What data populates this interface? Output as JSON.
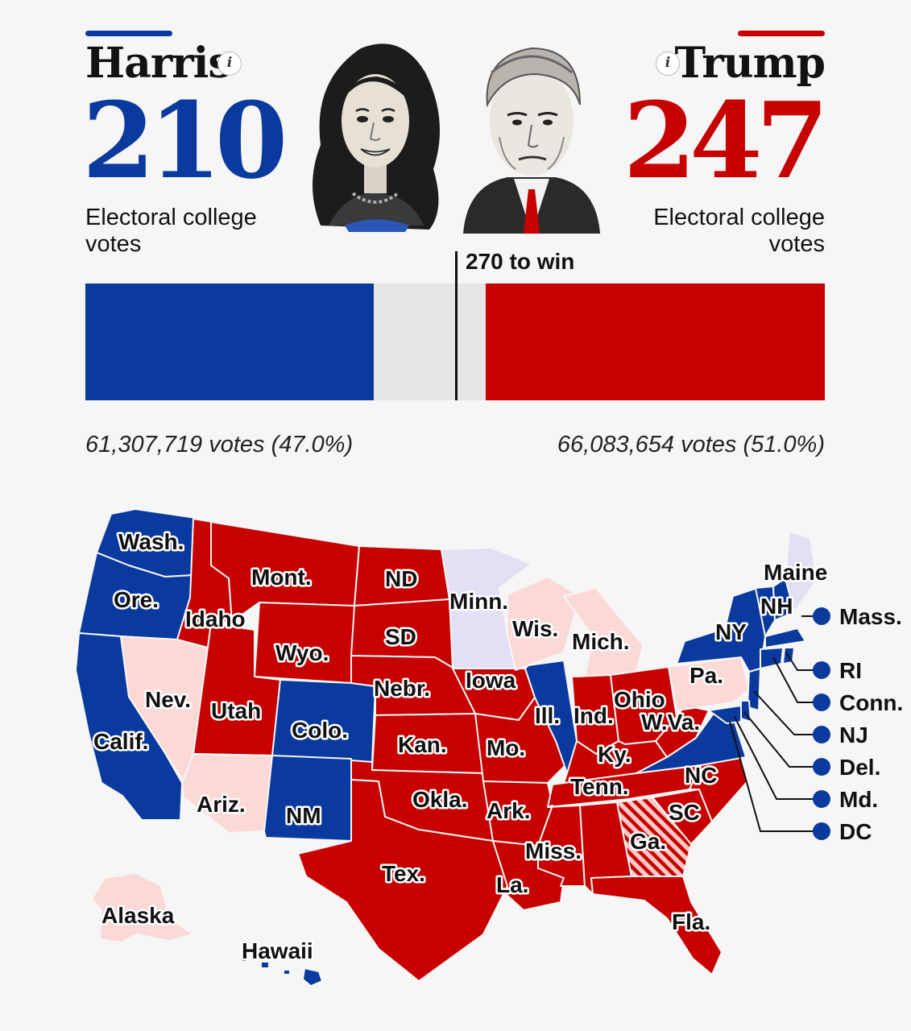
{
  "colors": {
    "dem": "#0a3a9e",
    "rep": "#c70000",
    "dem_lean": "#e2e0f4",
    "rep_lean": "#fbd9d6",
    "track": "#e6e6e6"
  },
  "harris": {
    "name": "Harris",
    "electoral_votes": "210",
    "ev_label": "Electoral college votes",
    "popular_vote": "61,307,719 votes (47.0%)",
    "info_icon": "i"
  },
  "trump": {
    "name": "Trump",
    "electoral_votes": "247",
    "ev_label": "Electoral college votes",
    "popular_vote": "66,083,654 votes (51.0%)",
    "info_icon": "i"
  },
  "bar": {
    "total": 538,
    "harris_ev": 210,
    "trump_ev": 247,
    "win_threshold": 270,
    "threshold_label": "270 to win"
  },
  "map": {
    "states": {
      "wash": {
        "label": "Wash.",
        "status": "dem"
      },
      "ore": {
        "label": "Ore.",
        "status": "dem"
      },
      "calif": {
        "label": "Calif.",
        "status": "dem"
      },
      "nev": {
        "label": "Nev.",
        "status": "rep_lean"
      },
      "idaho": {
        "label": "Idaho",
        "status": "rep"
      },
      "mont": {
        "label": "Mont.",
        "status": "rep"
      },
      "wyo": {
        "label": "Wyo.",
        "status": "rep"
      },
      "utah": {
        "label": "Utah",
        "status": "rep"
      },
      "ariz": {
        "label": "Ariz.",
        "status": "rep_lean"
      },
      "colo": {
        "label": "Colo.",
        "status": "dem"
      },
      "nm": {
        "label": "NM",
        "status": "dem"
      },
      "nd": {
        "label": "ND",
        "status": "rep"
      },
      "sd": {
        "label": "SD",
        "status": "rep"
      },
      "nebr": {
        "label": "Nebr.",
        "status": "rep"
      },
      "kan": {
        "label": "Kan.",
        "status": "rep"
      },
      "okla": {
        "label": "Okla.",
        "status": "rep"
      },
      "tex": {
        "label": "Tex.",
        "status": "rep"
      },
      "minn": {
        "label": "Minn.",
        "status": "dem_lean"
      },
      "iowa": {
        "label": "Iowa",
        "status": "rep"
      },
      "mo": {
        "label": "Mo.",
        "status": "rep"
      },
      "ark": {
        "label": "Ark.",
        "status": "rep"
      },
      "la": {
        "label": "La.",
        "status": "rep"
      },
      "wis": {
        "label": "Wis.",
        "status": "rep_lean"
      },
      "ill": {
        "label": "Ill.",
        "status": "dem"
      },
      "mich": {
        "label": "Mich.",
        "status": "rep_lean"
      },
      "ind": {
        "label": "Ind.",
        "status": "rep"
      },
      "ohio": {
        "label": "Ohio",
        "status": "rep"
      },
      "ky": {
        "label": "Ky.",
        "status": "rep"
      },
      "tenn": {
        "label": "Tenn.",
        "status": "rep"
      },
      "miss": {
        "label": "Miss.",
        "status": "rep"
      },
      "ala": {
        "label": "",
        "status": "rep"
      },
      "ga": {
        "label": "Ga.",
        "status": "rep_hatched"
      },
      "fla": {
        "label": "Fla.",
        "status": "rep"
      },
      "sc": {
        "label": "SC",
        "status": "rep"
      },
      "nc": {
        "label": "NC",
        "status": "rep"
      },
      "va": {
        "label": "",
        "status": "dem"
      },
      "wva": {
        "label": "W.Va.",
        "status": "rep"
      },
      "pa": {
        "label": "Pa.",
        "status": "rep_lean"
      },
      "ny": {
        "label": "NY",
        "status": "dem"
      },
      "vt": {
        "label": "",
        "status": "dem"
      },
      "nh": {
        "label": "NH",
        "status": "dem"
      },
      "maine": {
        "label": "Maine",
        "status": "dem_lean"
      },
      "alaska": {
        "label": "Alaska",
        "status": "rep_lean"
      },
      "hawaii": {
        "label": "Hawaii",
        "status": "dem"
      }
    },
    "small_states": [
      "Mass.",
      "RI",
      "Conn.",
      "NJ",
      "Del.",
      "Md.",
      "DC"
    ]
  }
}
